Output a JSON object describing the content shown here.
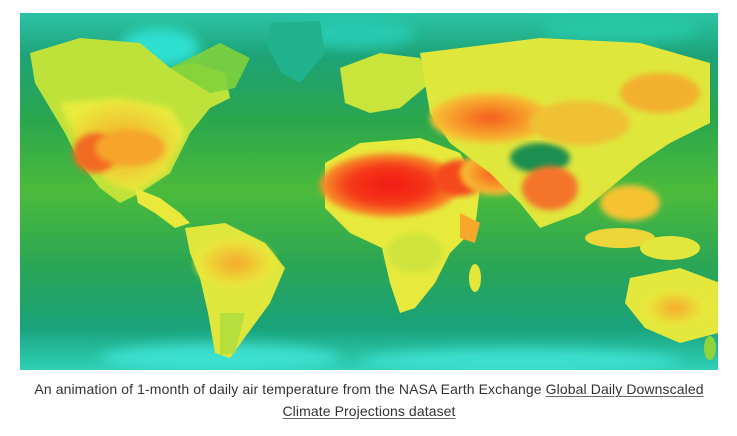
{
  "figure": {
    "caption_text": "An animation of 1-month of daily air temperature from the NASA Earth Exchange ",
    "caption_link_text": "Global Daily Downscaled Climate Projections dataset"
  },
  "map": {
    "type": "world-temperature-heatmap",
    "palette": {
      "cold_ocean": "#0fa58a",
      "cool_ocean": "#22b35a",
      "mild": "#7fd43a",
      "warm": "#e9ec3a",
      "hot": "#f79a2a",
      "hottest": "#f5211b",
      "polar": "#34d6c8"
    }
  }
}
